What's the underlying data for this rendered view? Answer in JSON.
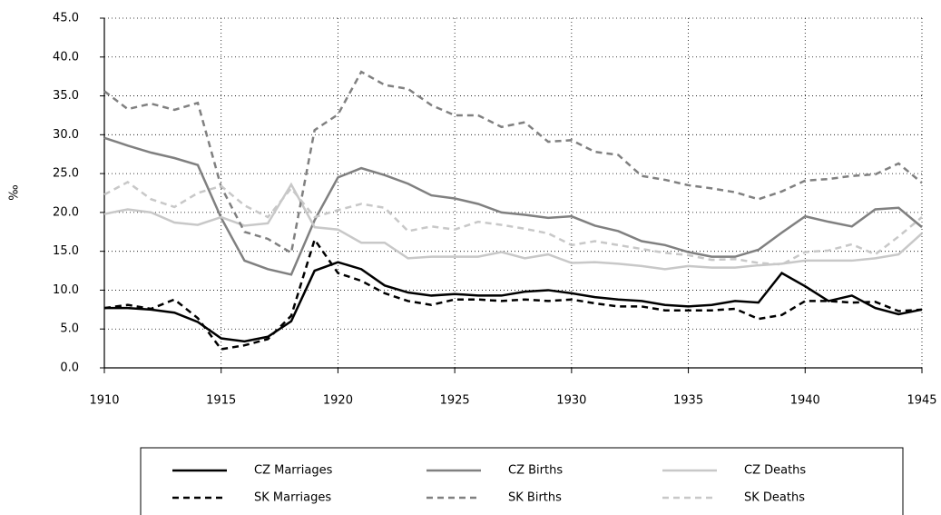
{
  "chart_data": {
    "type": "line",
    "y_label": "‰",
    "x": [
      1910,
      1911,
      1912,
      1913,
      1914,
      1915,
      1916,
      1917,
      1918,
      1919,
      1920,
      1921,
      1922,
      1923,
      1924,
      1925,
      1926,
      1927,
      1928,
      1929,
      1930,
      1931,
      1932,
      1933,
      1934,
      1935,
      1936,
      1937,
      1938,
      1939,
      1940,
      1941,
      1942,
      1943,
      1944,
      1945
    ],
    "xlim": [
      1910,
      1945
    ],
    "xticks": [
      1910,
      1915,
      1920,
      1925,
      1930,
      1935,
      1940,
      1945
    ],
    "ylim": [
      0,
      45
    ],
    "yticks": [
      {
        "value": 0,
        "label": "0.0"
      },
      {
        "value": 5,
        "label": "5.0"
      },
      {
        "value": 10,
        "label": "10.0"
      },
      {
        "value": 15,
        "label": "15.0"
      },
      {
        "value": 20,
        "label": "20.0"
      },
      {
        "value": 25,
        "label": "25.0"
      },
      {
        "value": 30,
        "label": "30.0"
      },
      {
        "value": 35,
        "label": "35.0"
      },
      {
        "value": 40,
        "label": "40.0"
      },
      {
        "value": 45,
        "label": "45.0"
      }
    ],
    "grid": true,
    "legend": "bottom",
    "series": [
      {
        "name": "CZ Marriages",
        "color": "#000000",
        "style": "solid",
        "values": [
          7.7,
          7.7,
          7.5,
          7.1,
          5.9,
          3.8,
          3.4,
          4.0,
          6.0,
          12.5,
          13.6,
          12.7,
          10.6,
          9.7,
          9.3,
          9.5,
          9.3,
          9.3,
          9.8,
          10.0,
          9.6,
          9.1,
          8.8,
          8.6,
          8.1,
          7.9,
          8.1,
          8.6,
          8.4,
          12.2,
          10.5,
          8.6,
          9.3,
          7.7,
          6.9,
          7.5
        ]
      },
      {
        "name": "CZ Births",
        "color": "#808080",
        "style": "solid",
        "values": [
          29.6,
          28.6,
          27.7,
          27.0,
          26.1,
          19.3,
          13.8,
          12.7,
          12.0,
          19.0,
          24.5,
          25.7,
          24.8,
          23.7,
          22.2,
          21.8,
          21.1,
          20.0,
          19.7,
          19.3,
          19.5,
          18.3,
          17.6,
          16.3,
          15.8,
          14.9,
          14.3,
          14.3,
          15.2,
          17.4,
          19.5,
          18.8,
          18.2,
          20.4,
          20.6,
          18.1
        ]
      },
      {
        "name": "CZ Deaths",
        "color": "#c8c8c8",
        "style": "solid",
        "values": [
          19.8,
          20.4,
          20.0,
          18.7,
          18.4,
          19.4,
          18.3,
          18.6,
          23.6,
          18.1,
          17.8,
          16.1,
          16.1,
          14.1,
          14.3,
          14.3,
          14.3,
          14.9,
          14.1,
          14.6,
          13.5,
          13.6,
          13.4,
          13.1,
          12.7,
          13.1,
          12.9,
          12.9,
          13.2,
          13.4,
          13.8,
          13.8,
          13.8,
          14.1,
          14.6,
          17.3
        ]
      },
      {
        "name": "SK Marriages",
        "color": "#000000",
        "style": "dashed",
        "values": [
          7.7,
          8.1,
          7.6,
          8.8,
          6.4,
          2.4,
          2.9,
          3.7,
          6.7,
          16.5,
          12.2,
          11.2,
          9.6,
          8.6,
          8.1,
          8.8,
          8.8,
          8.6,
          8.8,
          8.6,
          8.8,
          8.3,
          7.9,
          7.9,
          7.4,
          7.4,
          7.4,
          7.6,
          6.3,
          6.8,
          8.6,
          8.6,
          8.4,
          8.5,
          7.3,
          7.5
        ]
      },
      {
        "name": "SK Births",
        "color": "#808080",
        "style": "dashed",
        "values": [
          35.6,
          33.3,
          34.0,
          33.2,
          34.1,
          23.3,
          17.5,
          16.6,
          14.8,
          30.6,
          32.6,
          38.1,
          36.4,
          35.9,
          33.8,
          32.5,
          32.5,
          31.0,
          31.6,
          29.1,
          29.3,
          27.8,
          27.4,
          24.7,
          24.2,
          23.5,
          23.1,
          22.6,
          21.7,
          22.7,
          24.1,
          24.3,
          24.7,
          24.9,
          26.3,
          23.8
        ]
      },
      {
        "name": "SK Deaths",
        "color": "#c8c8c8",
        "style": "dashed",
        "values": [
          22.3,
          23.9,
          21.7,
          20.7,
          22.5,
          23.4,
          20.9,
          19.4,
          23.1,
          19.4,
          20.3,
          21.1,
          20.6,
          17.6,
          18.2,
          17.8,
          18.8,
          18.4,
          17.9,
          17.3,
          15.8,
          16.3,
          15.8,
          15.3,
          14.8,
          14.5,
          13.9,
          14.0,
          13.5,
          13.3,
          14.9,
          15.1,
          15.9,
          14.6,
          16.9,
          19.4
        ]
      }
    ]
  }
}
